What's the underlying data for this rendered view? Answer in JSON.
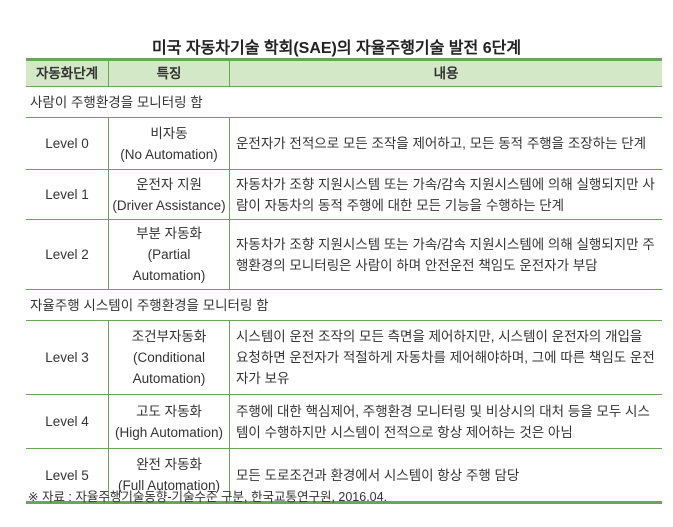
{
  "title": "미국 자동차기술 학회(SAE)의 자율주행기술 발전 6단계",
  "headers": [
    "자동화단계",
    "특징",
    "내용"
  ],
  "groups": [
    {
      "label": "사람이 주행환경을 모니터링 함",
      "rows": [
        {
          "level": "Level 0",
          "feature_ko": "비자동",
          "feature_en": "(No Automation)",
          "content": "운전자가 전적으로 모든 조작을 제어하고, 모든 동적 주행을 조장하는 단계"
        },
        {
          "level": "Level 1",
          "feature_ko": "운전자 지원",
          "feature_en": "(Driver Assistance)",
          "content": "자동차가 조향 지원시스템 또는 가속/감속 지원시스템에 의해 실행되지만 사람이 자동차의 동적 주행에 대한 모든 기능을 수행하는 단계"
        },
        {
          "level": "Level 2",
          "feature_ko": "부분 자동화",
          "feature_en": "(Partial Automation)",
          "content": "자동차가 조향 지원시스템 또는 가속/감속 지원시스템에 의해 실행되지만 주행환경의 모니터링은 사람이 하며 안전운전 책임도 운전자가 부담"
        }
      ]
    },
    {
      "label": "자율주행 시스템이 주행환경을 모니터링 함",
      "rows": [
        {
          "level": "Level 3",
          "feature_ko": "조건부자동화",
          "feature_en": "(Conditional Automation)",
          "content": "시스템이 운전 조작의 모든 측면을 제어하지만, 시스템이 운전자의 개입을 요청하면 운전자가 적절하게 자동차를 제어해야하며, 그에 따른 책임도 운전자가 보유"
        },
        {
          "level": "Level 4",
          "feature_ko": "고도 자동화",
          "feature_en": "(High Automation)",
          "content": "주행에 대한 핵심제어, 주행환경 모니터링 및 비상시의 대처 등을 모두 시스템이 수행하지만 시스템이 전적으로 항상 제어하는 것은 아님"
        },
        {
          "level": "Level 5",
          "feature_ko": "완전 자동화",
          "feature_en": "(Full Automation)",
          "content": "모든 도로조건과 환경에서 시스템이 항상 주행 담당"
        }
      ]
    }
  ],
  "note": "※ 자료 : 자율주행기술동향-기술수준 구분, 한국교통연구원, 2016.04.",
  "colors": {
    "header_bg": "#d3e8c6",
    "rule": "#6aa55a"
  }
}
